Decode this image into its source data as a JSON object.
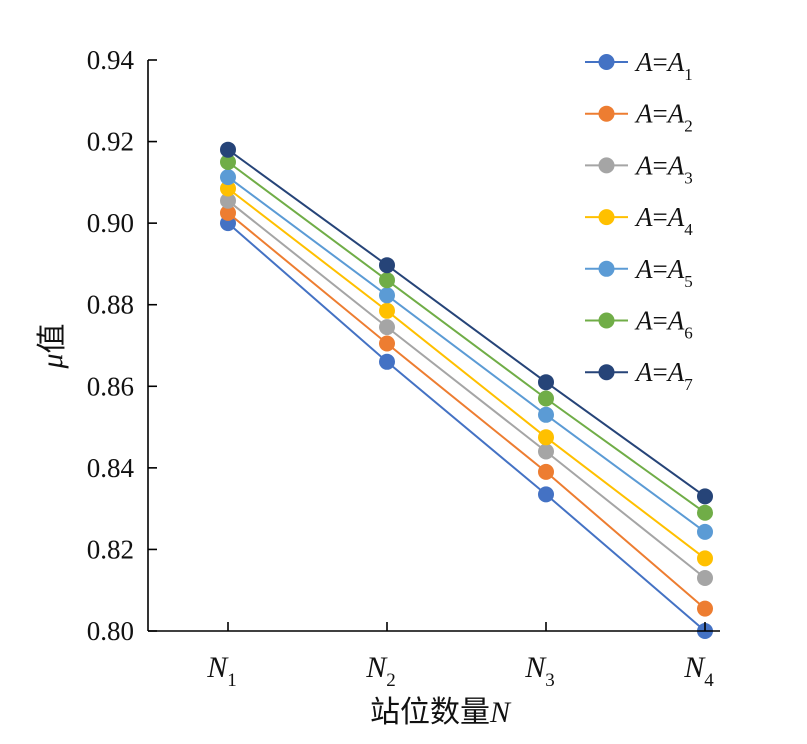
{
  "chart_data": {
    "type": "line",
    "title": "",
    "xlabel": {
      "text": "站位数量",
      "var": "N"
    },
    "ylabel": {
      "var": "μ",
      "text": "值"
    },
    "categories": [
      {
        "base": "N",
        "sub": "1"
      },
      {
        "base": "N",
        "sub": "2"
      },
      {
        "base": "N",
        "sub": "3"
      },
      {
        "base": "N",
        "sub": "4"
      }
    ],
    "ylim": [
      0.8,
      0.94
    ],
    "yticks": [
      "0.80",
      "0.82",
      "0.84",
      "0.86",
      "0.88",
      "0.90",
      "0.92",
      "0.94"
    ],
    "grid": false,
    "legend_position": "top-right",
    "series": [
      {
        "name": "A=A1",
        "label": {
          "lhs": "A",
          "rhs": "A",
          "sub": "1"
        },
        "color": "#4472C4",
        "values": [
          0.9,
          0.866,
          0.8335,
          0.8
        ]
      },
      {
        "name": "A=A2",
        "label": {
          "lhs": "A",
          "rhs": "A",
          "sub": "2"
        },
        "color": "#ED7D31",
        "values": [
          0.9025,
          0.8705,
          0.839,
          0.8055
        ]
      },
      {
        "name": "A=A3",
        "label": {
          "lhs": "A",
          "rhs": "A",
          "sub": "3"
        },
        "color": "#A5A5A5",
        "values": [
          0.9055,
          0.8745,
          0.844,
          0.813
        ]
      },
      {
        "name": "A=A4",
        "label": {
          "lhs": "A",
          "rhs": "A",
          "sub": "4"
        },
        "color": "#FFC000",
        "values": [
          0.9085,
          0.8785,
          0.8475,
          0.8178
        ]
      },
      {
        "name": "A=A5",
        "label": {
          "lhs": "A",
          "rhs": "A",
          "sub": "5"
        },
        "color": "#5B9BD5",
        "values": [
          0.9113,
          0.8823,
          0.853,
          0.8243
        ]
      },
      {
        "name": "A=A6",
        "label": {
          "lhs": "A",
          "rhs": "A",
          "sub": "6"
        },
        "color": "#70AD47",
        "values": [
          0.915,
          0.886,
          0.857,
          0.829
        ]
      },
      {
        "name": "A=A7",
        "label": {
          "lhs": "A",
          "rhs": "A",
          "sub": "7"
        },
        "color": "#264478",
        "values": [
          0.918,
          0.8897,
          0.861,
          0.833
        ]
      }
    ]
  }
}
